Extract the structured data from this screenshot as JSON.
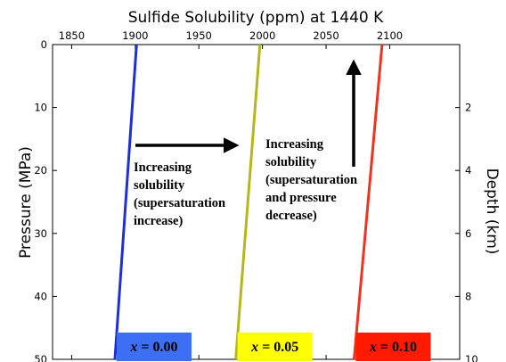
{
  "chart_data": {
    "type": "line",
    "title": "Sulfide Solubility (ppm) at 1440 K",
    "xlabel": "",
    "ylabel": "Pressure (MPa)",
    "y2label": "Depth (km)",
    "x_axis_position": "top",
    "xlim": [
      1835,
      2155
    ],
    "ylim": [
      50,
      0
    ],
    "y2lim": [
      10,
      0
    ],
    "xticks": [
      "1850",
      "1900",
      "1950",
      "2000",
      "2050",
      "2100"
    ],
    "yticks": [
      "0",
      "10",
      "20",
      "30",
      "40",
      "50"
    ],
    "y2ticks": [
      "2",
      "4",
      "6",
      "8",
      "10"
    ],
    "grid": false,
    "series": [
      {
        "name": "x = 0.00",
        "label_var": "x",
        "label_value": "= 0.00",
        "color": "#1f2fd6",
        "label_bg": "#3d6ff5",
        "x": [
          1901,
          1884
        ],
        "y": [
          0,
          50
        ]
      },
      {
        "name": "x = 0.05",
        "label_var": "x",
        "label_value": "= 0.05",
        "color": "#b5b51c",
        "label_bg": "#ffff00",
        "x": [
          1998,
          1979
        ],
        "y": [
          0,
          50
        ]
      },
      {
        "name": "x = 0.10",
        "label_var": "x",
        "label_value": "= 0.10",
        "color": "#ee3322",
        "label_bg": "#ff1a00",
        "x": [
          2094,
          2072
        ],
        "y": [
          0,
          50
        ]
      }
    ],
    "annotations": [
      {
        "lines": [
          "Increasing",
          "solubility",
          "(supersaturation",
          "increase)"
        ],
        "arrow": "right"
      },
      {
        "lines": [
          "Increasing",
          "solubility",
          "(supersaturation",
          "and pressure",
          "decrease)"
        ],
        "arrow": "up"
      }
    ]
  }
}
